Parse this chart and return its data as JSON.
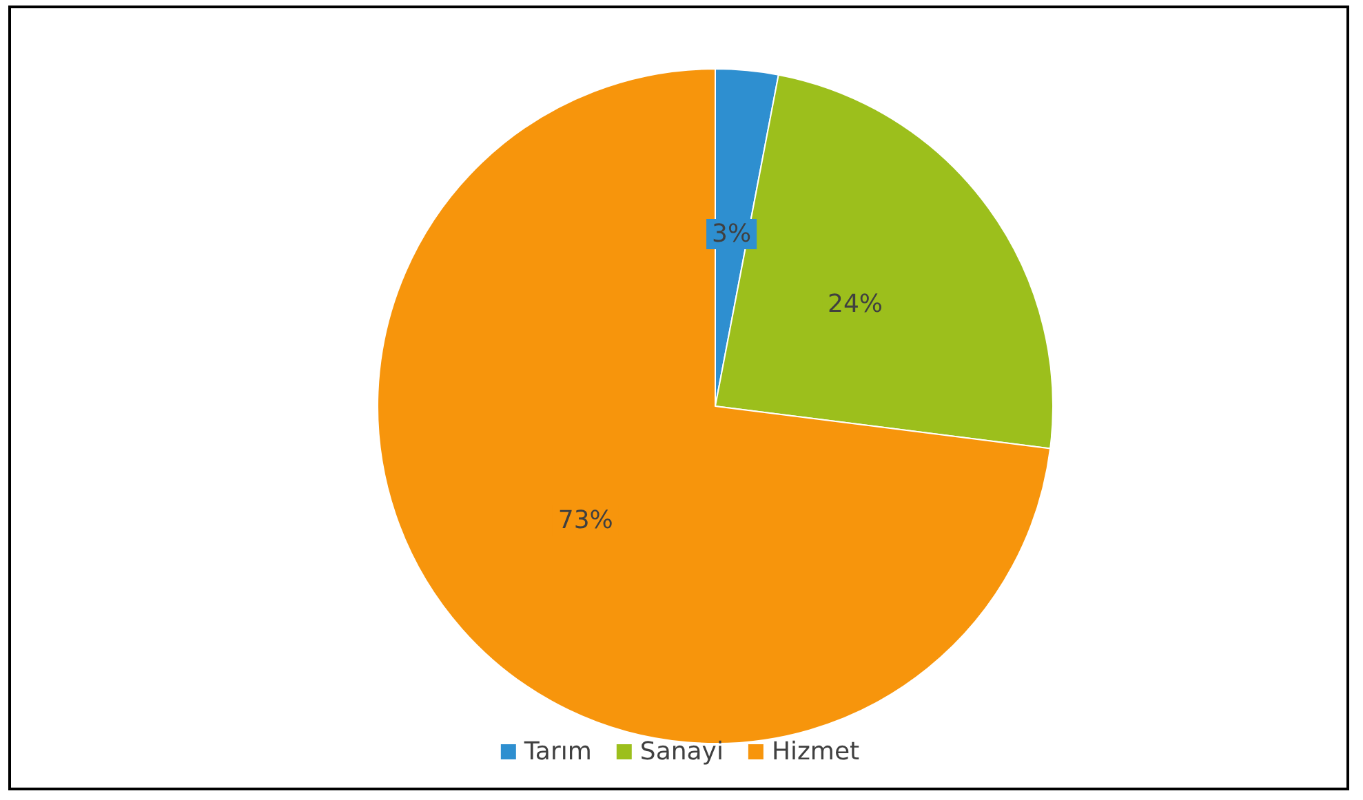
{
  "chart_data": {
    "type": "pie",
    "categories": [
      "Tarım",
      "Sanayi",
      "Hizmet"
    ],
    "values": [
      3,
      24,
      73
    ],
    "value_labels": [
      "3%",
      "24%",
      "73%"
    ],
    "colors": [
      "#2e8fd0",
      "#9cbf1c",
      "#f7950c"
    ],
    "legend": "bottom"
  }
}
